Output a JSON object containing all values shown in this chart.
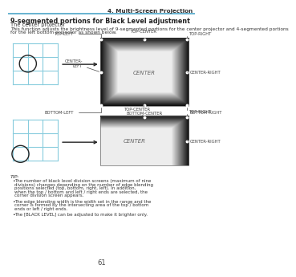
{
  "page_num": "61",
  "header_text": "4. Multi-Screen Projection",
  "header_line_color": "#4da6c8",
  "title_text": "9-segmented portions for Black Level adjustment",
  "subtitle_text": "The center projector",
  "body_text_1": "This function adjusts the brightness level of 9-segmented portions for the center projector and 4-segmented portions",
  "body_text_2": "for the left bottom projector as shown below.",
  "tip_header": "TIP:",
  "tip_bullets": [
    "The number of black level division screens (maximum of nine divisions) changes depending on the number of edge blending positions selected (top, bottom, right, left). In addition, when the top / bottom and left / right ends are selected, the corner division screen appears.",
    "The edge blending width is the width set in the range and the corner is formed by the intersecting area of the top / bottom ends or left / right ends.",
    "The [BLACK LEVEL] can be adjusted to make it brighter only."
  ],
  "bg_color": "#ffffff",
  "text_color": "#333333",
  "grid_line_color": "#88ccdd",
  "lbl_color": "#444444",
  "lbl_fs": 3.8
}
